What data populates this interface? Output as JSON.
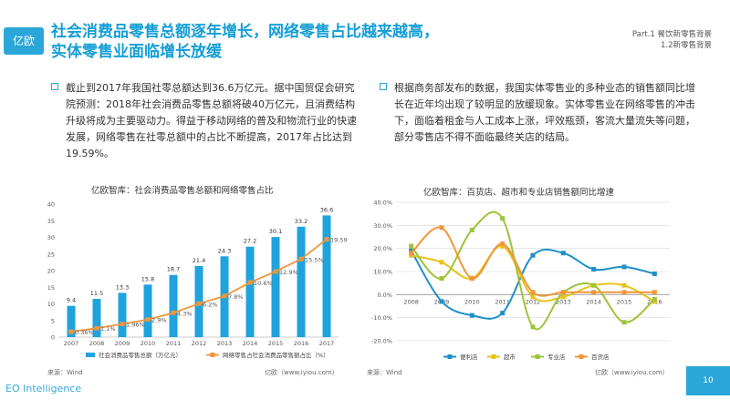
{
  "header": {
    "logo_text": "亿欧",
    "title_line1": "社会消费品零售总额逐年增长，网络零售占比越来越高，",
    "title_line2": "实体零售业面临增长放缓",
    "crumb_line1": "Part.1  餐饮新零售背景",
    "crumb_line2": "1.2新零售背景"
  },
  "bullets": {
    "left": "截止到2017年我国社零总额达到36.6万亿元。据中国贸促会研究院预测：2018年社会消费品零售总额将破40万亿元，且消费结构升级将成为主要驱动力。得益于移动网络的普及和物流行业的快速发展，网络零售在社零总额中的占比不断提高，2017年占比达到19.59%。",
    "right": "根据商务部发布的数据，我国实体零售业的多种业态的销售额同比增长在近年均出现了较明显的放缓现象。实体零售业在网络零售的冲击下，面临着租金与人工成本上涨，坪效瓶颈，客流大量流失等问题，部分零售店不得不面临最终关店的结局。"
  },
  "footer": {
    "brand": "EO Intelligence",
    "page_number": "10",
    "source_left": "来源：Wind",
    "source_left_right": "亿欧（www.iyiou.com）",
    "source_right": "来源：Wind",
    "source_right_right": "亿欧（www.iyiou.com）"
  },
  "colors": {
    "accent": "#159ed6",
    "bar": "#1fa3dc",
    "line": "#f0963a"
  },
  "chart_data": [
    {
      "type": "bar",
      "title": "亿欧智库：社会消费品零售总额和网络零售占比",
      "categories": [
        "2007",
        "2008",
        "2009",
        "2010",
        "2011",
        "2012",
        "2013",
        "2014",
        "2015",
        "2016",
        "2017"
      ],
      "ylim": [
        0,
        40
      ],
      "yticks": [
        0,
        5,
        10,
        15,
        20,
        25,
        30,
        35,
        40
      ],
      "series": [
        {
          "name": "社会消费品零售总额（万亿元）",
          "type": "bar",
          "values": [
            9.4,
            11.5,
            13.3,
            15.8,
            18.7,
            21.4,
            24.3,
            27.2,
            30.1,
            33.2,
            36.6
          ],
          "labels": [
            "9.4",
            "11.5",
            "13.3",
            "15.8",
            "18.7",
            "21.4",
            "24.3",
            "27.2",
            "30.1",
            "33.2",
            "36.6"
          ]
        },
        {
          "name": "网络零售占社会消费品零售额占比（%）",
          "type": "line",
          "values": [
            0.36,
            1.1,
            1.96,
            2.9,
            4.3,
            6.2,
            7.8,
            10.6,
            12.9,
            15.5,
            19.59
          ],
          "labels": [
            "0.36%",
            "1.1%",
            "1.96%",
            "2.9%",
            "4.3%",
            "6.2%",
            "7.8%",
            "10.6%",
            "12.9%",
            "15.5%",
            "19.59%"
          ]
        }
      ]
    },
    {
      "type": "line",
      "title": "亿欧智库：百货店、超市和专业店销售额同比增速",
      "categories": [
        "2008",
        "2009",
        "2010",
        "2011",
        "2012",
        "2013",
        "2014",
        "2015",
        "2016"
      ],
      "ylim": [
        -20,
        40
      ],
      "yticks": [
        -20,
        -10,
        0,
        10,
        20,
        30,
        40
      ],
      "ytick_labels": [
        "-20.0%",
        "-10.0%",
        "0.0%",
        "10.0%",
        "20.0%",
        "30.0%",
        "40.0%"
      ],
      "series": [
        {
          "name": "便利店",
          "color": "#1f90c8",
          "values": [
            19,
            -3,
            -9,
            -8,
            17,
            18,
            11,
            12,
            9
          ]
        },
        {
          "name": "超市",
          "color": "#e8c21b",
          "values": [
            17,
            14,
            7,
            21,
            -1,
            -1,
            4,
            4,
            -3
          ]
        },
        {
          "name": "专业店",
          "color": "#9cc43a",
          "values": [
            21,
            7,
            28,
            33,
            -14,
            1,
            4,
            -12,
            -2
          ]
        },
        {
          "name": "百货店",
          "color": "#f0963a",
          "values": [
            18,
            29,
            7,
            22,
            1,
            1,
            1,
            1,
            1
          ]
        }
      ]
    }
  ]
}
